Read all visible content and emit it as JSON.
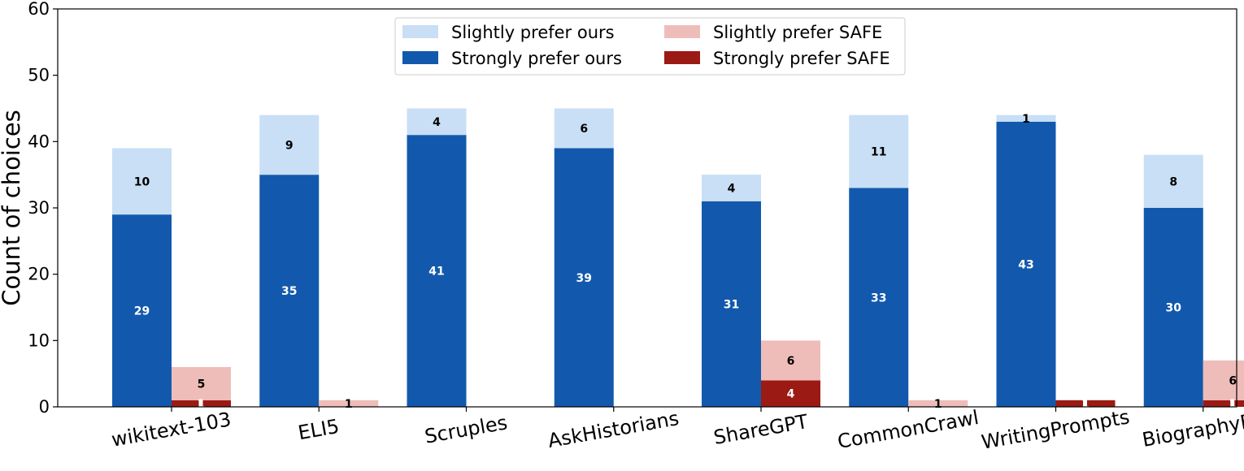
{
  "chart_data": {
    "type": "bar",
    "title": "",
    "xlabel": "",
    "ylabel": "Count of choices",
    "ylim": [
      0,
      60
    ],
    "yticks": [
      "0",
      "10",
      "20",
      "30",
      "40",
      "50",
      "60"
    ],
    "categories": [
      "wikitext-103",
      "ELI5",
      "Scruples",
      "AskHistorians",
      "ShareGPT",
      "CommonCrawl",
      "WritingPrompts",
      "BiographyFS"
    ],
    "series": [
      {
        "name": "Strongly prefer ours",
        "stack": "ours",
        "color": "#1259ad",
        "label_color": "#ffffff",
        "values": [
          29,
          35,
          41,
          39,
          31,
          33,
          43,
          30
        ]
      },
      {
        "name": "Slightly prefer ours",
        "stack": "ours",
        "color": "#c8dff5",
        "label_color": "#000000",
        "values": [
          10,
          9,
          4,
          6,
          4,
          11,
          1,
          8
        ]
      },
      {
        "name": "Strongly prefer SAFE",
        "stack": "safe",
        "color": "#9b1a14",
        "label_color": "#ffffff",
        "values": [
          1,
          0,
          0,
          0,
          4,
          0,
          1,
          1
        ]
      },
      {
        "name": "Slightly prefer SAFE",
        "stack": "safe",
        "color": "#efbdb9",
        "label_color": "#000000",
        "values": [
          5,
          1,
          0,
          0,
          6,
          1,
          0,
          6
        ]
      }
    ],
    "legend": {
      "placement": "top-center",
      "entries": [
        "Slightly prefer ours",
        "Strongly prefer ours",
        "Slightly prefer SAFE",
        "Strongly prefer SAFE"
      ]
    }
  }
}
